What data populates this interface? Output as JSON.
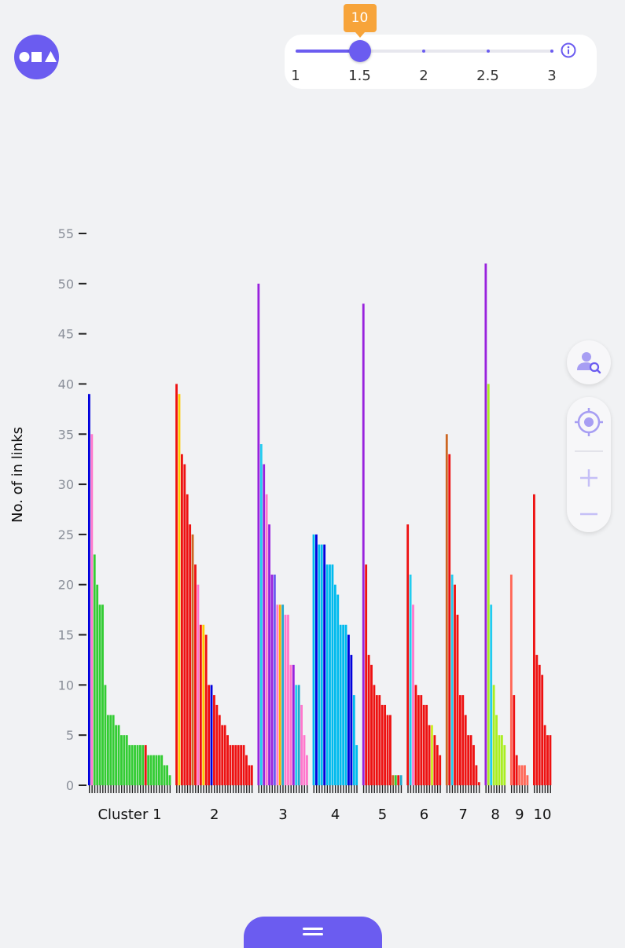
{
  "app": {
    "logo_icon": "shapes-logo-icon",
    "accent_color": "#6b5cf0"
  },
  "slider": {
    "value_badge": "10",
    "labels": [
      "1",
      "1.5",
      "2",
      "2.5",
      "3"
    ],
    "selected_value": 1.5,
    "min": 1,
    "max": 3,
    "info_icon": "info-icon"
  },
  "side_controls": {
    "icons": [
      "user-search-icon",
      "locate-target-icon",
      "zoom-in-icon",
      "zoom-out-icon"
    ]
  },
  "bottom_tab": {
    "icon": "menu-handle-icon"
  },
  "chart_data": {
    "type": "bar",
    "ylabel": "No. of in links",
    "ylim": [
      0,
      55
    ],
    "yticks": [
      0,
      5,
      10,
      15,
      20,
      25,
      30,
      35,
      40,
      45,
      50,
      55
    ],
    "clusters": [
      {
        "label": "Cluster 1",
        "values": [
          39,
          35,
          23,
          20,
          18,
          18,
          10,
          7,
          7,
          7,
          6,
          6,
          5,
          5,
          5,
          4,
          4,
          4,
          4,
          4,
          4,
          4,
          3,
          3,
          3,
          3,
          3,
          3,
          2,
          2,
          1
        ],
        "colors": [
          "#0000dd",
          "#ff77cc",
          "#33cc33",
          "#33cc33",
          "#33cc33",
          "#33cc33",
          "#33cc33",
          "#33cc33",
          "#33cc33",
          "#33cc33",
          "#33cc33",
          "#33cc33",
          "#33cc33",
          "#33cc33",
          "#33cc33",
          "#33cc33",
          "#33cc33",
          "#33cc33",
          "#33cc33",
          "#33cc33",
          "#33cc33",
          "#ee1111",
          "#33cc33",
          "#33cc33",
          "#33cc33",
          "#33cc33",
          "#33cc33",
          "#33cc33",
          "#33cc33",
          "#33cc33",
          "#33cc33"
        ]
      },
      {
        "label": "2",
        "values": [
          40,
          39,
          33,
          32,
          29,
          26,
          25,
          22,
          20,
          16,
          16,
          15,
          10,
          10,
          9,
          8,
          7,
          6,
          6,
          5,
          4,
          4,
          4,
          4,
          4,
          4,
          3,
          2,
          2
        ],
        "colors": [
          "#ee1111",
          "#ffcc00",
          "#ee1111",
          "#ee1111",
          "#ee1111",
          "#ee1111",
          "#cc6622",
          "#ee1111",
          "#ff77cc",
          "#ee1111",
          "#ffcc00",
          "#ee1111",
          "#ee1111",
          "#0000dd",
          "#ee1111",
          "#ee1111",
          "#ee1111",
          "#ee1111",
          "#ee1111",
          "#ee1111",
          "#ee1111",
          "#ee1111",
          "#ee1111",
          "#ee1111",
          "#ee1111",
          "#ee1111",
          "#ee1111",
          "#ee1111",
          "#ee1111"
        ]
      },
      {
        "label": "3",
        "values": [
          50,
          34,
          32,
          29,
          26,
          21,
          21,
          18,
          18,
          18,
          17,
          17,
          12,
          12,
          10,
          10,
          8,
          5,
          3
        ],
        "colors": [
          "#9922dd",
          "#22ccee",
          "#9922dd",
          "#ff77cc",
          "#9922dd",
          "#9922dd",
          "#6b5cf0",
          "#ff77cc",
          "#ffaa00",
          "#22aacc",
          "#ff77cc",
          "#ff77cc",
          "#ff77cc",
          "#9922dd",
          "#22ccee",
          "#22aacc",
          "#ff77cc",
          "#ff77cc",
          "#ff77cc"
        ]
      },
      {
        "label": "4",
        "values": [
          25,
          25,
          24,
          24,
          24,
          22,
          22,
          22,
          20,
          19,
          16,
          16,
          16,
          15,
          13,
          9,
          4
        ],
        "colors": [
          "#00bbee",
          "#0000dd",
          "#00bbee",
          "#00bbee",
          "#0000dd",
          "#00bbee",
          "#00bbee",
          "#00bbee",
          "#00bbee",
          "#00bbee",
          "#00bbee",
          "#00bbee",
          "#00bbee",
          "#0000dd",
          "#0000dd",
          "#00bbee",
          "#00bbee"
        ]
      },
      {
        "label": "5",
        "values": [
          48,
          22,
          13,
          12,
          10,
          9,
          9,
          8,
          8,
          7,
          7,
          1,
          1,
          1,
          1
        ],
        "colors": [
          "#9922dd",
          "#ee1111",
          "#ee1111",
          "#ee1111",
          "#ee1111",
          "#ee1111",
          "#ee1111",
          "#ee1111",
          "#ee1111",
          "#ee1111",
          "#ee1111",
          "#cc6622",
          "#33cc33",
          "#ee1111",
          "#22aacc"
        ]
      },
      {
        "label": "6",
        "values": [
          26,
          21,
          18,
          10,
          9,
          9,
          8,
          8,
          6,
          6,
          5,
          4,
          3
        ],
        "colors": [
          "#ee1111",
          "#22ccee",
          "#ff77cc",
          "#ee1111",
          "#ee1111",
          "#ee1111",
          "#ee1111",
          "#ee1111",
          "#ee1111",
          "#ccee22",
          "#ee1111",
          "#ee1111",
          "#ee1111"
        ]
      },
      {
        "label": "7",
        "values": [
          35,
          33,
          21,
          20,
          17,
          9,
          9,
          7,
          5,
          5,
          4,
          2,
          0.3
        ],
        "colors": [
          "#cc6622",
          "#ee1111",
          "#22ccee",
          "#ee1111",
          "#ee1111",
          "#ee1111",
          "#ee1111",
          "#ee1111",
          "#ee1111",
          "#ee1111",
          "#ee1111",
          "#ee1111",
          "#ee1111"
        ]
      },
      {
        "label": "8",
        "values": [
          52,
          40,
          18,
          10,
          7,
          5,
          5,
          4
        ],
        "colors": [
          "#9922dd",
          "#aaee22",
          "#22ccee",
          "#aaee22",
          "#aaee22",
          "#aaee22",
          "#aaee22",
          "#aaee22"
        ]
      },
      {
        "label": "9",
        "values": [
          21,
          9,
          3,
          2,
          2,
          2,
          1
        ],
        "colors": [
          "#ff6655",
          "#ee1111",
          "#ee1111",
          "#ff6655",
          "#ff6655",
          "#ff6655",
          "#ff6655"
        ]
      },
      {
        "label": "10",
        "values": [
          29,
          13,
          12,
          11,
          6,
          5,
          5
        ],
        "colors": [
          "#ee1111",
          "#ee1111",
          "#ee1111",
          "#ee1111",
          "#ee1111",
          "#ee1111",
          "#ee1111"
        ]
      }
    ]
  }
}
